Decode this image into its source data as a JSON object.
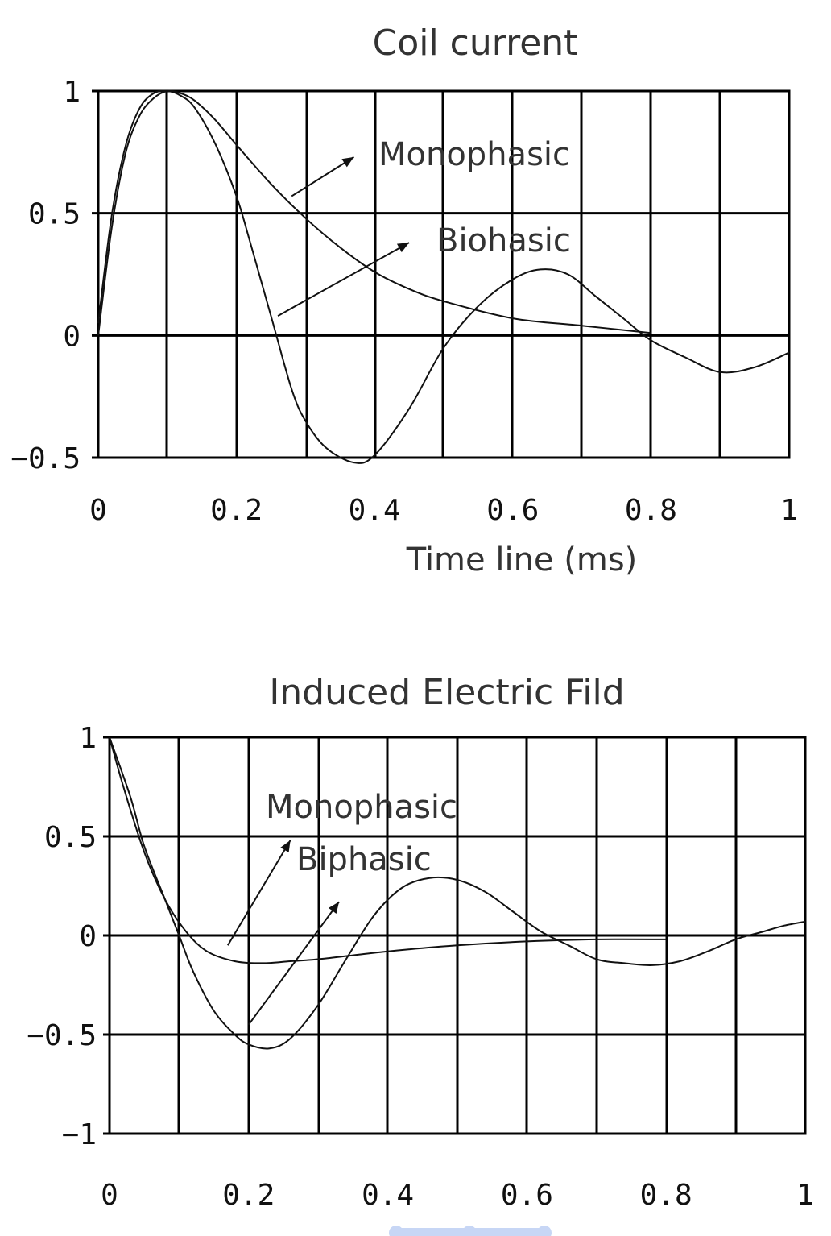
{
  "chart_data": [
    {
      "type": "line",
      "title": "Coil current",
      "xlabel": "Time line (ms)",
      "ylabel": "",
      "xlim": [
        0,
        1
      ],
      "ylim": [
        -0.5,
        1
      ],
      "xticks": [
        0,
        0.2,
        0.4,
        0.6,
        0.8,
        1
      ],
      "xtick_labels": [
        "0",
        "0.2",
        "0.4",
        "0.6",
        "0.8",
        "1"
      ],
      "yticks": [
        -0.5,
        0,
        0.5,
        1
      ],
      "ytick_labels": [
        "−0.5",
        "0",
        "0.5",
        "1"
      ],
      "grid": true,
      "series": [
        {
          "name": "Monophasic",
          "x": [
            0,
            0.02,
            0.04,
            0.06,
            0.08,
            0.1,
            0.12,
            0.14,
            0.17,
            0.2,
            0.25,
            0.3,
            0.35,
            0.4,
            0.45,
            0.5,
            0.6,
            0.7,
            0.8
          ],
          "y": [
            0,
            0.45,
            0.75,
            0.9,
            0.97,
            1.0,
            0.99,
            0.96,
            0.88,
            0.78,
            0.62,
            0.48,
            0.36,
            0.26,
            0.19,
            0.14,
            0.07,
            0.04,
            0.01
          ]
        },
        {
          "name": "Biohasic",
          "x": [
            0,
            0.02,
            0.04,
            0.06,
            0.08,
            0.1,
            0.12,
            0.14,
            0.17,
            0.2,
            0.22,
            0.25,
            0.28,
            0.3,
            0.33,
            0.37,
            0.4,
            0.45,
            0.5,
            0.55,
            0.6,
            0.64,
            0.68,
            0.72,
            0.76,
            0.8,
            0.85,
            0.9,
            0.95,
            1.0
          ],
          "y": [
            0.05,
            0.5,
            0.78,
            0.93,
            0.99,
            1.0,
            0.98,
            0.93,
            0.78,
            0.57,
            0.38,
            0.08,
            -0.22,
            -0.35,
            -0.46,
            -0.52,
            -0.49,
            -0.3,
            -0.05,
            0.12,
            0.23,
            0.27,
            0.25,
            0.16,
            0.07,
            -0.02,
            -0.09,
            -0.15,
            -0.13,
            -0.07
          ]
        }
      ],
      "annotations": [
        {
          "text": "Monophasic",
          "arrow_from": [
            0.28,
            0.57
          ],
          "arrow_to": [
            0.37,
            0.73
          ]
        },
        {
          "text": "Biohasic",
          "arrow_from": [
            0.26,
            0.08
          ],
          "arrow_to": [
            0.45,
            0.38
          ]
        }
      ]
    },
    {
      "type": "line",
      "title": "Induced Electric Fild",
      "xlabel": "",
      "ylabel": "",
      "xlim": [
        0,
        1
      ],
      "ylim": [
        -1,
        1
      ],
      "xticks": [
        0,
        0.2,
        0.4,
        0.6,
        0.8,
        1
      ],
      "xtick_labels": [
        "0",
        "0.2",
        "0.4",
        "0.6",
        "0.8",
        "1"
      ],
      "yticks": [
        -1,
        -0.5,
        0,
        0.5,
        1
      ],
      "ytick_labels": [
        "−1",
        "−0.5",
        "0",
        "0.5",
        "1"
      ],
      "grid": true,
      "series": [
        {
          "name": "Monophasic",
          "x": [
            0,
            0.02,
            0.05,
            0.08,
            0.11,
            0.14,
            0.18,
            0.22,
            0.26,
            0.3,
            0.35,
            0.4,
            0.5,
            0.6,
            0.7,
            0.8
          ],
          "y": [
            1,
            0.75,
            0.42,
            0.18,
            0.02,
            -0.08,
            -0.13,
            -0.14,
            -0.13,
            -0.12,
            -0.1,
            -0.08,
            -0.05,
            -0.03,
            -0.02,
            -0.02
          ]
        },
        {
          "name": "Biphasic",
          "x": [
            0,
            0.03,
            0.05,
            0.08,
            0.1,
            0.12,
            0.15,
            0.18,
            0.2,
            0.23,
            0.26,
            0.3,
            0.34,
            0.38,
            0.42,
            0.46,
            0.5,
            0.54,
            0.58,
            0.62,
            0.66,
            0.7,
            0.74,
            0.78,
            0.82,
            0.86,
            0.9,
            0.94,
            0.97,
            1.0
          ],
          "y": [
            1,
            0.7,
            0.45,
            0.18,
            0.0,
            -0.18,
            -0.38,
            -0.5,
            -0.55,
            -0.57,
            -0.52,
            -0.35,
            -0.12,
            0.1,
            0.24,
            0.29,
            0.28,
            0.22,
            0.12,
            0.02,
            -0.05,
            -0.12,
            -0.14,
            -0.15,
            -0.13,
            -0.08,
            -0.02,
            0.02,
            0.05,
            0.07
          ]
        }
      ],
      "annotations": [
        {
          "text": "Monophasic",
          "arrow_from": [
            0.17,
            -0.05
          ],
          "arrow_to": [
            0.26,
            0.48
          ]
        },
        {
          "text": "Biphasic",
          "arrow_from": [
            0.2,
            -0.45
          ],
          "arrow_to": [
            0.33,
            0.17
          ]
        }
      ]
    }
  ],
  "footer": {
    "dot_color": "#c7d6f5"
  }
}
